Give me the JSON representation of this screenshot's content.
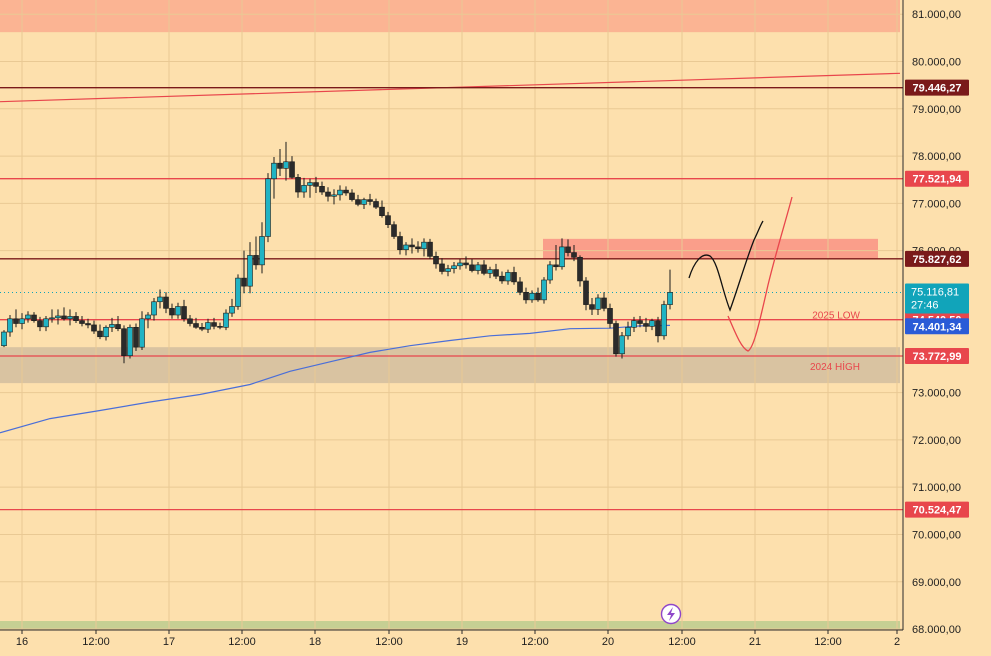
{
  "chart_data": {
    "type": "candlestick",
    "y_range": [
      67980,
      81300
    ],
    "x_range": [
      0,
      900
    ],
    "y_ticks": [
      {
        "value": 81000,
        "label": "81.000,00"
      },
      {
        "value": 80000,
        "label": "80.000,00"
      },
      {
        "value": 79000,
        "label": "79.000,00"
      },
      {
        "value": 78000,
        "label": "78.000,00"
      },
      {
        "value": 77000,
        "label": "77.000,00"
      },
      {
        "value": 76000,
        "label": "76.000,00"
      },
      {
        "value": 73000,
        "label": "73.000,00"
      },
      {
        "value": 72000,
        "label": "72.000,00"
      },
      {
        "value": 71000,
        "label": "71.000,00"
      },
      {
        "value": 70000,
        "label": "70.000,00"
      },
      {
        "value": 69000,
        "label": "69.000,00"
      },
      {
        "value": 68000,
        "label": "68.000,00"
      }
    ],
    "x_ticks": [
      {
        "x": 22,
        "label": "16"
      },
      {
        "x": 96,
        "label": "12:00"
      },
      {
        "x": 169,
        "label": "17"
      },
      {
        "x": 242,
        "label": "12:00"
      },
      {
        "x": 315,
        "label": "18"
      },
      {
        "x": 389,
        "label": "12:00"
      },
      {
        "x": 462,
        "label": "19"
      },
      {
        "x": 535,
        "label": "12:00"
      },
      {
        "x": 608,
        "label": "20"
      },
      {
        "x": 682,
        "label": "12:00"
      },
      {
        "x": 755,
        "label": "21"
      },
      {
        "x": 828,
        "label": "12:00"
      },
      {
        "x": 897,
        "label": "2"
      }
    ],
    "levels": [
      {
        "value": 79446.27,
        "label": "79.446,27",
        "color": "#7a1a1a",
        "line": "#7a1a1a"
      },
      {
        "value": 77521.94,
        "label": "77.521,94",
        "color": "#e8464c",
        "line": "#e8464c"
      },
      {
        "value": 75827.62,
        "label": "75.827,62",
        "color": "#7a1a1a",
        "line": "#7a1a1a"
      },
      {
        "value": 74540.5,
        "label": "74.540,50",
        "color": "#e8464c",
        "line": "#e8464c"
      },
      {
        "value": 74401.34,
        "label": "74.401,34",
        "color": "#2a5bd7",
        "line": null
      },
      {
        "value": 73772.99,
        "label": "73.772,99",
        "color": "#e8464c",
        "line": "#e8464c"
      },
      {
        "value": 70524.47,
        "label": "70.524,47",
        "color": "#e8464c",
        "line": "#e8464c"
      }
    ],
    "last_price": {
      "value": 75116.81,
      "label": "75.116,81",
      "countdown": "27:46",
      "color": "#11a4ba"
    },
    "zone_labels": [
      {
        "text": "2025 LOW",
        "value": 74540.5,
        "color": "#e8464c"
      },
      {
        "text": "2024 HİGH",
        "value": 73772.99,
        "color": "#e8464c"
      }
    ],
    "zones": [
      {
        "y1": 81300,
        "y2": 80620,
        "x1": 0,
        "x2": 900,
        "color": "#fbb493"
      },
      {
        "y1": 76250,
        "y2": 75820,
        "x1": 543,
        "x2": 878,
        "color": "#fa9e8a"
      },
      {
        "y1": 73960,
        "y2": 73200,
        "x1": 0,
        "x2": 900,
        "color": "#d9c3a1"
      },
      {
        "y1": 68170,
        "y2": 67980,
        "x1": 0,
        "x2": 900,
        "color": "#c6cf93"
      }
    ],
    "trendline": {
      "start": {
        "x": 0,
        "value": 79150
      },
      "end": {
        "x": 900,
        "value": 79750
      },
      "color": "#e8464c"
    },
    "moving_average": {
      "color": "#4a6ed8",
      "points": [
        [
          0,
          72150
        ],
        [
          50,
          72450
        ],
        [
          100,
          72620
        ],
        [
          150,
          72800
        ],
        [
          200,
          72960
        ],
        [
          250,
          73170
        ],
        [
          290,
          73450
        ],
        [
          330,
          73650
        ],
        [
          370,
          73850
        ],
        [
          410,
          73990
        ],
        [
          450,
          74100
        ],
        [
          490,
          74200
        ],
        [
          530,
          74250
        ],
        [
          570,
          74350
        ],
        [
          610,
          74360
        ],
        [
          640,
          74410
        ],
        [
          670,
          74420
        ]
      ]
    },
    "candles": [
      [
        4,
        73990,
        74320,
        73960,
        74280
      ],
      [
        10,
        74280,
        74640,
        74180,
        74560
      ],
      [
        16,
        74560,
        74760,
        74380,
        74460
      ],
      [
        22,
        74460,
        74680,
        74340,
        74560
      ],
      [
        28,
        74560,
        74720,
        74480,
        74640
      ],
      [
        34,
        74640,
        74700,
        74480,
        74520
      ],
      [
        40,
        74520,
        74600,
        74300,
        74390
      ],
      [
        46,
        74390,
        74620,
        74300,
        74560
      ],
      [
        52,
        74560,
        74760,
        74480,
        74580
      ],
      [
        58,
        74580,
        74760,
        74440,
        74620
      ],
      [
        64,
        74620,
        74800,
        74520,
        74560
      ],
      [
        70,
        74560,
        74760,
        74420,
        74610
      ],
      [
        76,
        74610,
        74700,
        74470,
        74520
      ],
      [
        82,
        74520,
        74620,
        74400,
        74460
      ],
      [
        88,
        74460,
        74560,
        74360,
        74430
      ],
      [
        94,
        74430,
        74520,
        74240,
        74300
      ],
      [
        100,
        74300,
        74440,
        74130,
        74180
      ],
      [
        106,
        74180,
        74420,
        74100,
        74380
      ],
      [
        112,
        74380,
        74580,
        74280,
        74440
      ],
      [
        118,
        74440,
        74620,
        74300,
        74350
      ],
      [
        124,
        74350,
        74420,
        73620,
        73780
      ],
      [
        130,
        73780,
        74440,
        73720,
        74380
      ],
      [
        136,
        74380,
        74460,
        73880,
        73960
      ],
      [
        142,
        73960,
        74720,
        73900,
        74560
      ],
      [
        148,
        74560,
        74700,
        74360,
        74640
      ],
      [
        154,
        74640,
        75000,
        74520,
        74920
      ],
      [
        160,
        74920,
        75180,
        74780,
        75020
      ],
      [
        166,
        75020,
        75120,
        74680,
        74780
      ],
      [
        172,
        74780,
        74880,
        74560,
        74640
      ],
      [
        178,
        74640,
        74900,
        74560,
        74820
      ],
      [
        184,
        74820,
        74960,
        74500,
        74560
      ],
      [
        190,
        74560,
        74640,
        74400,
        74460
      ],
      [
        196,
        74460,
        74580,
        74350,
        74380
      ],
      [
        202,
        74380,
        74470,
        74300,
        74340
      ],
      [
        208,
        74340,
        74560,
        74260,
        74480
      ],
      [
        214,
        74480,
        74580,
        74340,
        74400
      ],
      [
        220,
        74400,
        74480,
        74340,
        74380
      ],
      [
        226,
        74380,
        74760,
        74320,
        74680
      ],
      [
        232,
        74680,
        74980,
        74600,
        74820
      ],
      [
        238,
        74820,
        75500,
        74750,
        75420
      ],
      [
        244,
        75420,
        76000,
        75100,
        75250
      ],
      [
        250,
        75250,
        76180,
        75100,
        75900
      ],
      [
        256,
        75900,
        76300,
        75600,
        75700
      ],
      [
        262,
        75700,
        76600,
        75520,
        76300
      ],
      [
        268,
        76300,
        77640,
        76180,
        77520
      ],
      [
        274,
        77520,
        77980,
        77100,
        77850
      ],
      [
        280,
        77850,
        78150,
        77580,
        77740
      ],
      [
        286,
        77740,
        78300,
        77480,
        77880
      ],
      [
        292,
        77880,
        78000,
        77520,
        77550
      ],
      [
        298,
        77550,
        77620,
        77120,
        77240
      ],
      [
        304,
        77240,
        77540,
        77120,
        77380
      ],
      [
        310,
        77380,
        77520,
        77120,
        77440
      ],
      [
        316,
        77440,
        77560,
        77220,
        77360
      ],
      [
        322,
        77360,
        77460,
        77180,
        77240
      ],
      [
        328,
        77240,
        77340,
        77040,
        77150
      ],
      [
        334,
        77150,
        77300,
        76980,
        77180
      ],
      [
        340,
        77180,
        77380,
        77060,
        77280
      ],
      [
        346,
        77280,
        77360,
        77160,
        77220
      ],
      [
        352,
        77220,
        77300,
        77040,
        77080
      ],
      [
        358,
        77080,
        77180,
        76940,
        76980
      ],
      [
        364,
        76980,
        77120,
        76880,
        77080
      ],
      [
        370,
        77080,
        77200,
        76960,
        77040
      ],
      [
        376,
        77040,
        77100,
        76880,
        76920
      ],
      [
        382,
        76920,
        77060,
        76700,
        76740
      ],
      [
        388,
        76740,
        76820,
        76480,
        76550
      ],
      [
        394,
        76550,
        76620,
        76250,
        76300
      ],
      [
        400,
        76300,
        76400,
        75920,
        76020
      ],
      [
        406,
        76020,
        76180,
        75900,
        76120
      ],
      [
        412,
        76120,
        76260,
        75940,
        76080
      ],
      [
        418,
        76080,
        76200,
        75960,
        76040
      ],
      [
        424,
        76040,
        76260,
        75880,
        76180
      ],
      [
        430,
        76180,
        76250,
        75820,
        75880
      ],
      [
        436,
        75880,
        75980,
        75620,
        75720
      ],
      [
        442,
        75720,
        75840,
        75500,
        75560
      ],
      [
        448,
        75560,
        75700,
        75460,
        75620
      ],
      [
        454,
        75620,
        75760,
        75520,
        75680
      ],
      [
        460,
        75680,
        75820,
        75600,
        75740
      ],
      [
        466,
        75740,
        75880,
        75620,
        75700
      ],
      [
        472,
        75700,
        75820,
        75540,
        75580
      ],
      [
        478,
        75580,
        75760,
        75500,
        75700
      ],
      [
        484,
        75700,
        75800,
        75480,
        75520
      ],
      [
        490,
        75520,
        75660,
        75420,
        75600
      ],
      [
        496,
        75600,
        75720,
        75400,
        75460
      ],
      [
        502,
        75460,
        75560,
        75300,
        75360
      ],
      [
        508,
        75360,
        75600,
        75280,
        75540
      ],
      [
        514,
        75540,
        75660,
        75280,
        75340
      ],
      [
        520,
        75340,
        75440,
        75060,
        75120
      ],
      [
        526,
        75120,
        75220,
        74880,
        74960
      ],
      [
        532,
        74960,
        75160,
        74900,
        75100
      ],
      [
        538,
        75100,
        75220,
        74920,
        74960
      ],
      [
        544,
        74960,
        75440,
        74880,
        75380
      ],
      [
        550,
        75380,
        75780,
        75300,
        75700
      ],
      [
        556,
        75700,
        76120,
        75580,
        75660
      ],
      [
        562,
        75660,
        76260,
        75600,
        76080
      ],
      [
        568,
        76080,
        76240,
        75880,
        75960
      ],
      [
        574,
        75960,
        76120,
        75780,
        75860
      ],
      [
        580,
        75860,
        75900,
        75240,
        75360
      ],
      [
        586,
        75360,
        75440,
        74740,
        74860
      ],
      [
        592,
        74860,
        75000,
        74640,
        74760
      ],
      [
        598,
        74760,
        75080,
        74640,
        75000
      ],
      [
        604,
        75000,
        75120,
        74720,
        74780
      ],
      [
        610,
        74780,
        74880,
        74360,
        74460
      ],
      [
        616,
        74460,
        74520,
        73760,
        73820
      ],
      [
        622,
        73820,
        74280,
        73720,
        74200
      ],
      [
        628,
        74200,
        74500,
        74120,
        74380
      ],
      [
        634,
        74380,
        74600,
        74280,
        74520
      ],
      [
        640,
        74520,
        74620,
        74380,
        74460
      ],
      [
        646,
        74460,
        74580,
        74280,
        74400
      ],
      [
        652,
        74400,
        74560,
        74320,
        74520
      ],
      [
        658,
        74520,
        74600,
        74060,
        74200
      ],
      [
        664,
        74200,
        74940,
        74120,
        74860
      ],
      [
        670,
        74860,
        75600,
        74760,
        75120
      ]
    ]
  }
}
